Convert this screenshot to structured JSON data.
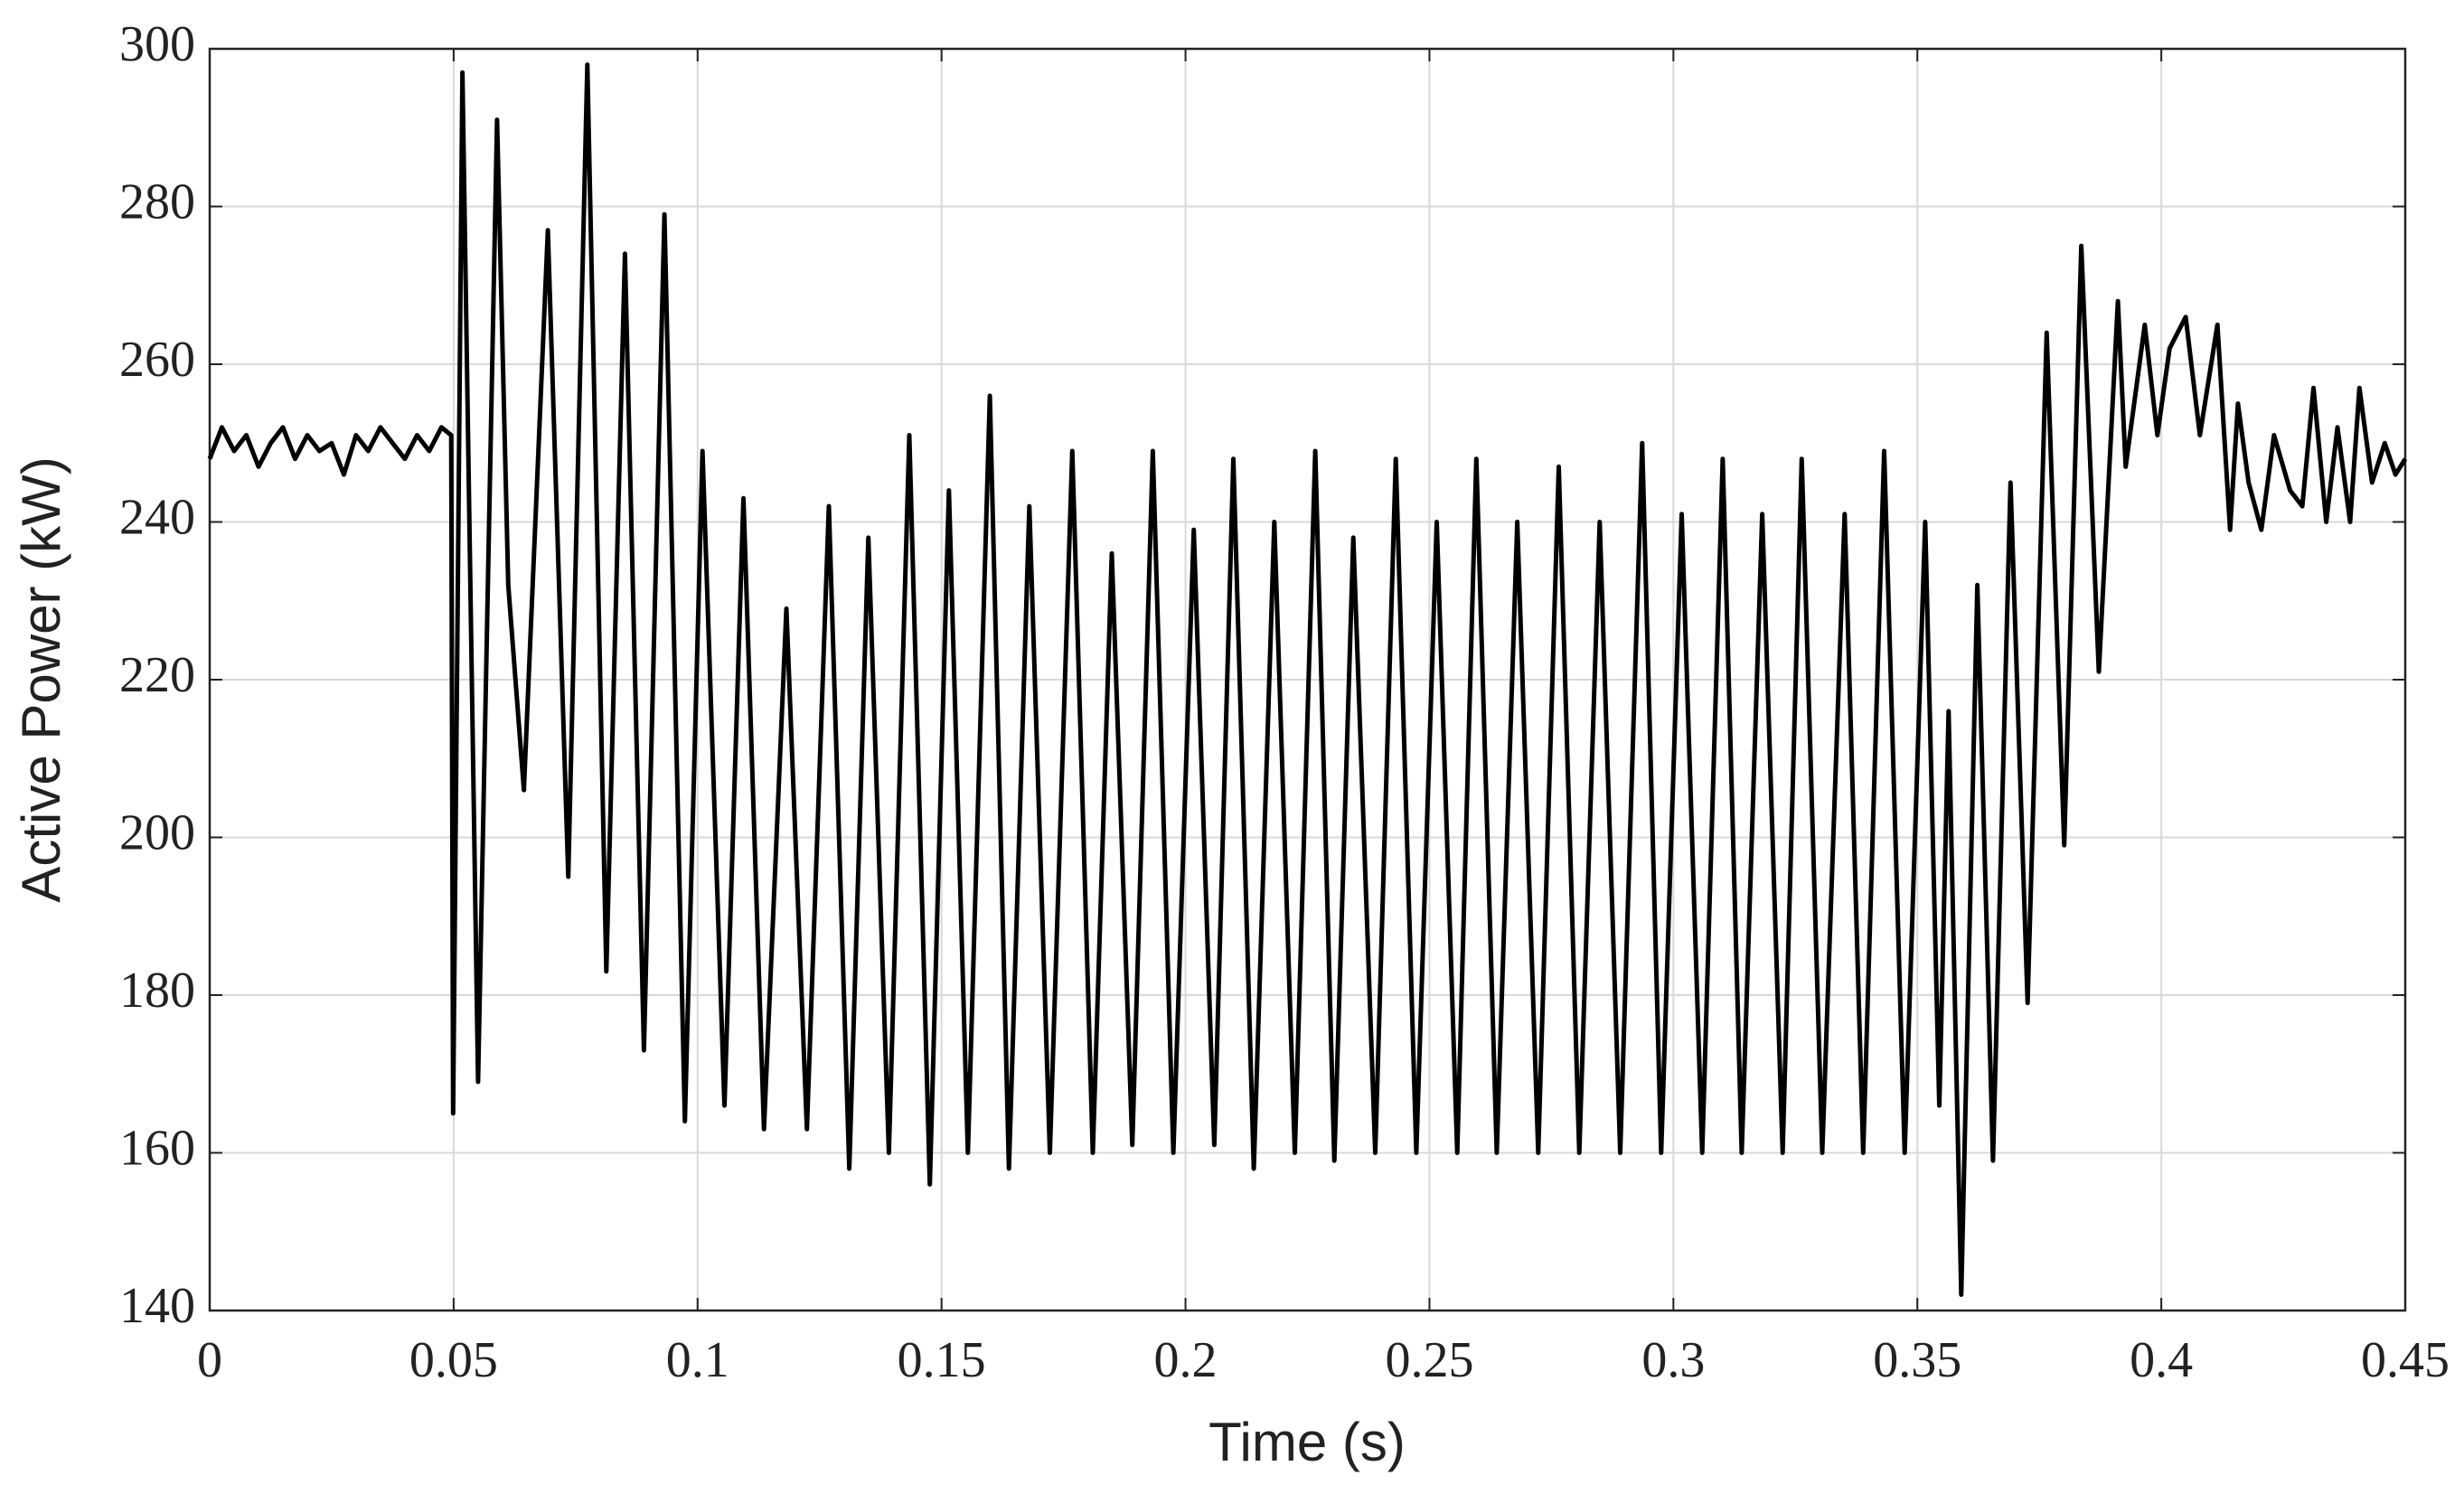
{
  "chart_data": {
    "type": "line",
    "xlabel": "Time (s)",
    "ylabel": "Active Power (kW)",
    "xlim": [
      0,
      0.45
    ],
    "xticks": [
      0,
      0.05,
      0.1,
      0.15,
      0.2,
      0.25,
      0.3,
      0.35,
      0.4,
      0.45
    ],
    "ylim": [
      140,
      300
    ],
    "yticks": [
      140,
      160,
      180,
      200,
      220,
      240,
      260,
      280,
      300
    ],
    "grid": true,
    "series": [
      {
        "color": "#000000",
        "x": [
          0,
          0.0025,
          0.005,
          0.0075,
          0.01,
          0.0125,
          0.015,
          0.0175,
          0.02,
          0.0225,
          0.025,
          0.0275,
          0.03,
          0.0325,
          0.035,
          0.0375,
          0.04,
          0.0425,
          0.045,
          0.0475,
          0.0495,
          0.0499,
          0.0518,
          0.055,
          0.0589,
          0.0612,
          0.0644,
          0.0693,
          0.0735,
          0.0774,
          0.0813,
          0.0851,
          0.089,
          0.0932,
          0.0974,
          0.101,
          0.1055,
          0.1094,
          0.1136,
          0.1182,
          0.1224,
          0.1269,
          0.1311,
          0.135,
          0.1392,
          0.1434,
          0.1476,
          0.1515,
          0.1554,
          0.1599,
          0.1638,
          0.168,
          0.1722,
          0.1768,
          0.181,
          0.1849,
          0.1891,
          0.1933,
          0.1975,
          0.2017,
          0.2059,
          0.2098,
          0.214,
          0.2182,
          0.2224,
          0.2266,
          0.2305,
          0.2344,
          0.2389,
          0.2431,
          0.2473,
          0.2515,
          0.2557,
          0.2596,
          0.2638,
          0.268,
          0.2723,
          0.2765,
          0.2807,
          0.2849,
          0.2891,
          0.2936,
          0.2975,
          0.3017,
          0.3059,
          0.3101,
          0.314,
          0.3182,
          0.3224,
          0.3263,
          0.3305,
          0.3351,
          0.3389,
          0.3432,
          0.3474,
          0.3516,
          0.3545,
          0.3564,
          0.359,
          0.3623,
          0.3655,
          0.3691,
          0.3726,
          0.3765,
          0.3801,
          0.3836,
          0.3872,
          0.3911,
          0.3927,
          0.3966,
          0.3992,
          0.4017,
          0.405,
          0.4079,
          0.4115,
          0.4141,
          0.4157,
          0.4179,
          0.4205,
          0.4231,
          0.4264,
          0.4289,
          0.4312,
          0.4338,
          0.4361,
          0.4387,
          0.4406,
          0.4432,
          0.4458,
          0.448,
          0.45
        ],
        "values": [
          248,
          252,
          249,
          251,
          247,
          250,
          252,
          248,
          251,
          249,
          250,
          246,
          251,
          249,
          252,
          250,
          248,
          251,
          249,
          252,
          251,
          165,
          297,
          169,
          291,
          232,
          206,
          277,
          195,
          298,
          183,
          274,
          173,
          279,
          164,
          249,
          166,
          243,
          163,
          229,
          163,
          242,
          158,
          238,
          160,
          251,
          156,
          244,
          160,
          256,
          158,
          242,
          160,
          249,
          160,
          236,
          161,
          249,
          160,
          239,
          161,
          248,
          158,
          240,
          160,
          249,
          159,
          238,
          160,
          248,
          160,
          240,
          160,
          248,
          160,
          240,
          160,
          247,
          160,
          240,
          160,
          250,
          160,
          241,
          160,
          248,
          160,
          241,
          160,
          248,
          160,
          241,
          160,
          249,
          160,
          240,
          166,
          216,
          142,
          232,
          159,
          245,
          179,
          264,
          199,
          275,
          221,
          268,
          247,
          265,
          251,
          262,
          266,
          251,
          265,
          239,
          255,
          245,
          239,
          251,
          244,
          242,
          257,
          240,
          252,
          240,
          257,
          245,
          250,
          246,
          248
        ]
      }
    ]
  }
}
